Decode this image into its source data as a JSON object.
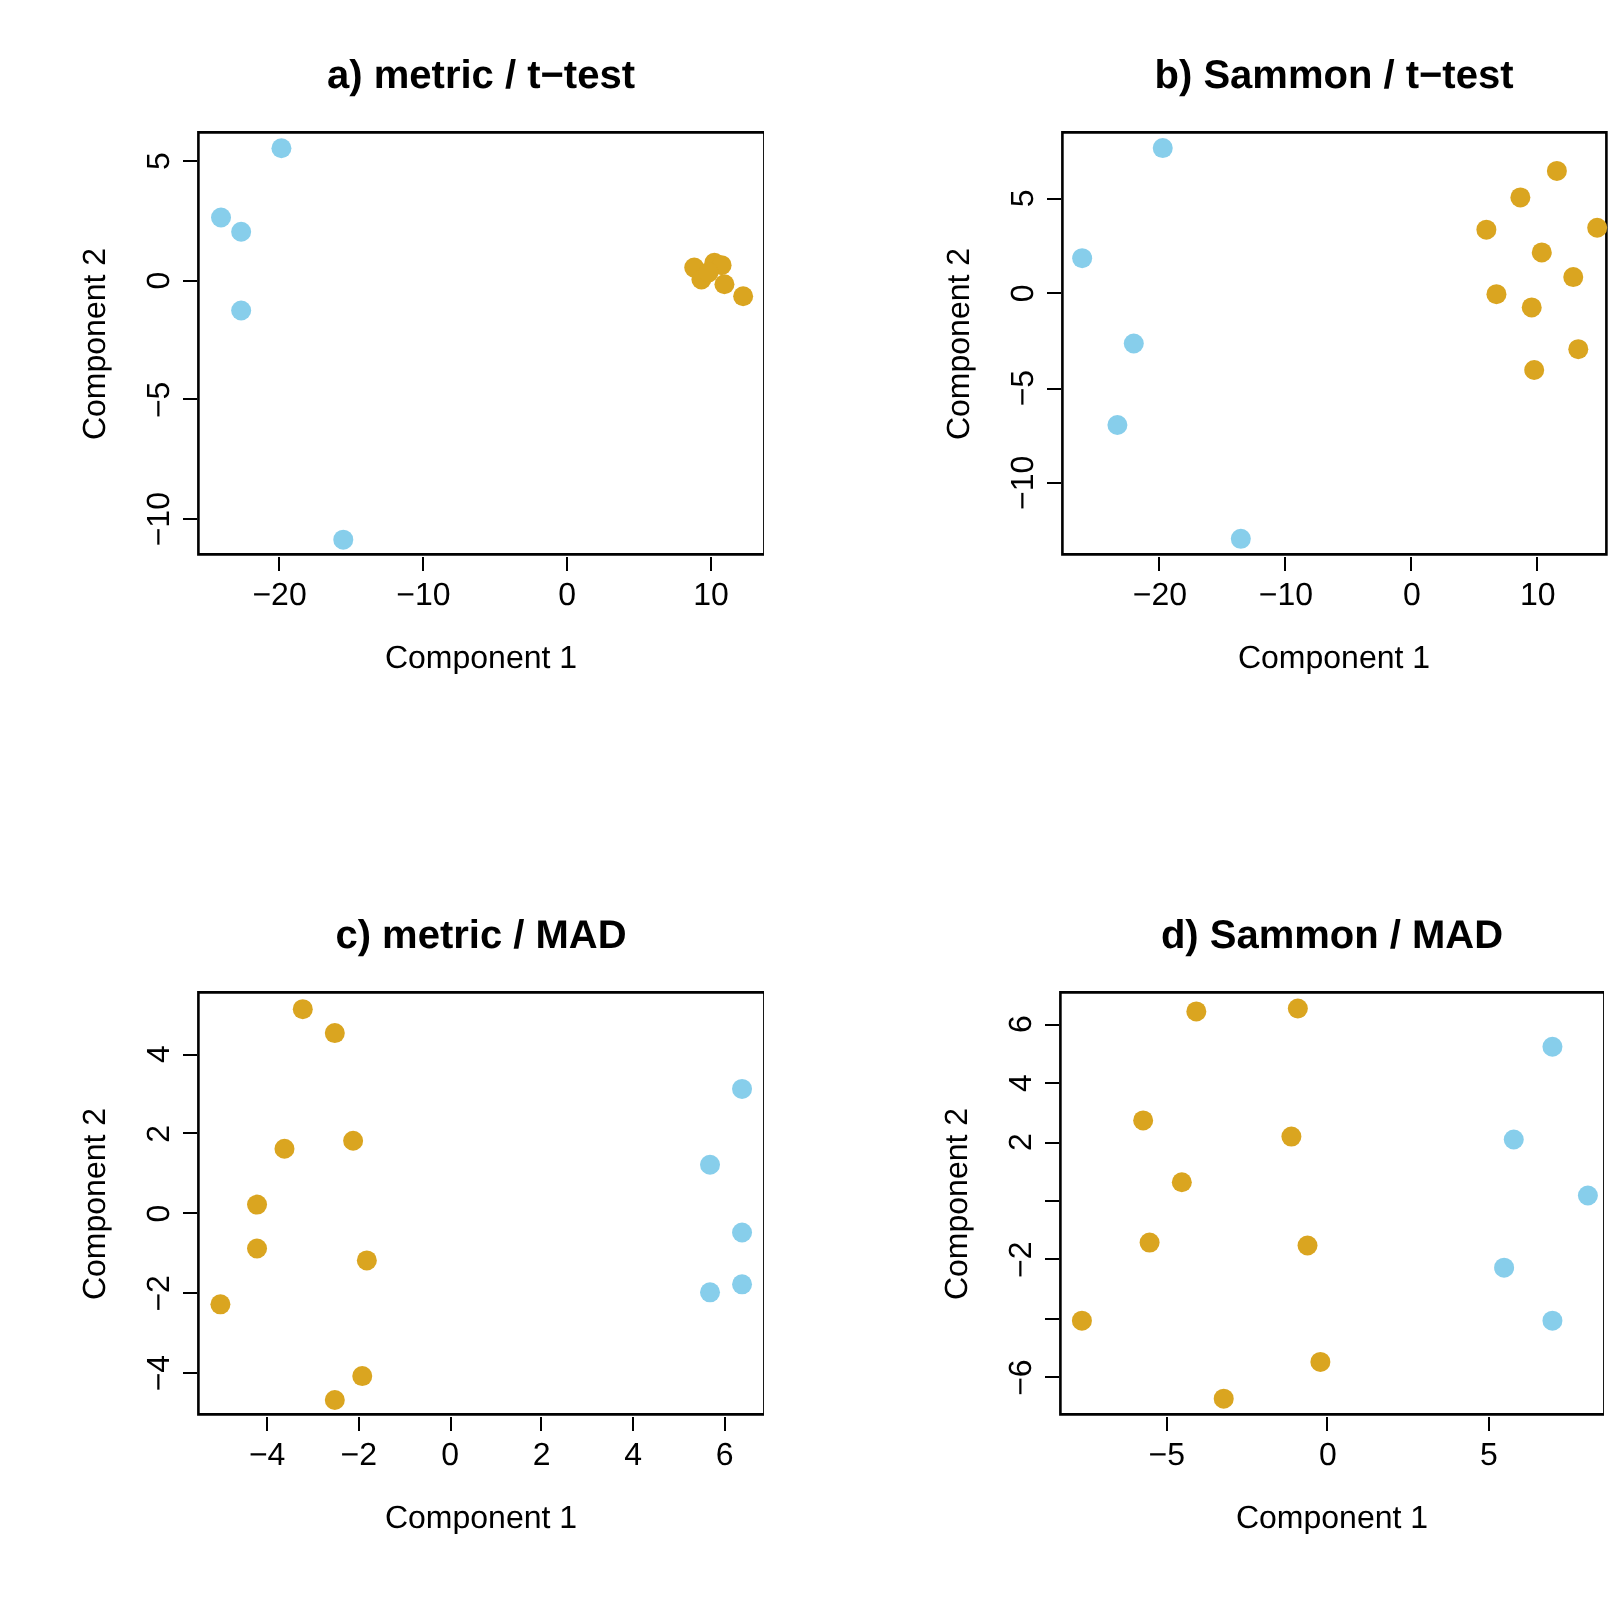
{
  "chart_data": [
    {
      "type": "scatter",
      "title": "a) metric / t−test",
      "xlabel": "Component 1",
      "ylabel": "Component 2",
      "marker": "circle",
      "xlim": [
        -25.6,
        13.75
      ],
      "ylim": [
        -11.5,
        6.18
      ],
      "xticks": [
        -20,
        -10,
        0,
        10
      ],
      "yticks": [
        -10,
        -5,
        0,
        5
      ],
      "series": [
        {
          "color": "#87ceeb",
          "x": [
            -19.8,
            -24.0,
            -22.6,
            -22.6,
            -15.5
          ],
          "values": [
            5.5,
            2.6,
            2.0,
            -1.3,
            -10.9
          ]
        },
        {
          "color": "#daa520",
          "x": [
            8.9,
            9.4,
            10.3,
            10.8,
            11.0,
            12.3,
            9.9
          ],
          "values": [
            0.5,
            0.0,
            0.7,
            0.6,
            -0.2,
            -0.7,
            0.3
          ]
        }
      ]
    },
    {
      "type": "scatter",
      "title": "b) Sammon / t−test",
      "xlabel": "Component 1",
      "ylabel": "Component 2",
      "marker": "circle",
      "xlim": [
        -27.7,
        15.5
      ],
      "ylim": [
        -13.8,
        8.45
      ],
      "xticks": [
        -20,
        -10,
        0,
        10
      ],
      "yticks": [
        -10,
        -5,
        0,
        5
      ],
      "series": [
        {
          "color": "#87ceeb",
          "x": [
            -19.7,
            -26.1,
            -22.0,
            -23.3,
            -13.5
          ],
          "values": [
            7.6,
            1.8,
            -2.7,
            -7.0,
            -13.0
          ]
        },
        {
          "color": "#daa520",
          "x": [
            11.6,
            8.7,
            6.0,
            14.8,
            10.4,
            12.9,
            6.8,
            9.6,
            13.3,
            9.8
          ],
          "values": [
            6.4,
            5.0,
            3.3,
            3.4,
            2.1,
            0.8,
            -0.1,
            -0.8,
            -3.0,
            -4.1
          ]
        }
      ]
    },
    {
      "type": "scatter",
      "title": "c) metric / MAD",
      "xlabel": "Component 1",
      "ylabel": "Component 2",
      "marker": "circle",
      "xlim": [
        -5.49,
        6.88
      ],
      "ylim": [
        -5.05,
        5.53
      ],
      "xticks": [
        -4,
        -2,
        0,
        2,
        4,
        6
      ],
      "yticks": [
        -4,
        -2,
        0,
        2,
        4
      ],
      "series": [
        {
          "color": "#daa520",
          "x": [
            -3.2,
            -2.5,
            -3.6,
            -2.1,
            -4.2,
            -4.2,
            -1.8,
            -5.0,
            -1.9,
            -2.5
          ],
          "values": [
            5.1,
            4.5,
            1.6,
            1.8,
            0.2,
            -0.9,
            -1.2,
            -2.3,
            -4.1,
            -4.7
          ]
        },
        {
          "color": "#87ceeb",
          "x": [
            6.4,
            5.7,
            6.4,
            6.4,
            5.7
          ],
          "values": [
            3.1,
            1.2,
            -0.5,
            -1.8,
            -2.0
          ]
        }
      ]
    },
    {
      "type": "scatter",
      "title": "d) Sammon / MAD",
      "xlabel": "Component 1",
      "ylabel": "Component 2",
      "marker": "circle",
      "xlim": [
        -8.28,
        8.6
      ],
      "ylim": [
        -7.27,
        7.06
      ],
      "xticks": [
        -5,
        0,
        5
      ],
      "yticks": [
        -6,
        {
          "value": -4,
          "label": null
        },
        -2,
        {
          "value": 0,
          "label": null
        },
        2,
        4,
        6
      ],
      "series": [
        {
          "color": "#daa520",
          "x": [
            -4.05,
            -0.9,
            -5.7,
            -1.1,
            -4.5,
            -5.5,
            -0.6,
            -7.6,
            -0.2,
            -3.2
          ],
          "values": [
            6.4,
            6.5,
            2.7,
            2.15,
            0.6,
            -1.45,
            -1.55,
            -4.1,
            -5.5,
            -6.75
          ]
        },
        {
          "color": "#87ceeb",
          "x": [
            7.0,
            5.8,
            8.1,
            5.5,
            7.0
          ],
          "values": [
            5.2,
            2.05,
            0.15,
            -2.3,
            -4.1
          ]
        }
      ]
    }
  ]
}
